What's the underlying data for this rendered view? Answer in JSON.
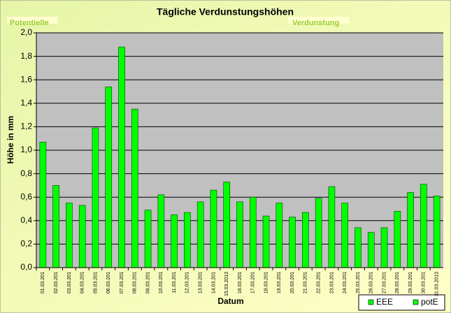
{
  "chart_data": {
    "type": "bar",
    "title": "Tägliche Verdunstungshöhen",
    "annotations": [
      "Potentielle",
      "Verdunstung"
    ],
    "xlabel": "Datum",
    "ylabel": "Höhe in mm",
    "categories": [
      "01.03.201",
      "02.03.201",
      "03.03.201",
      "04.03.201",
      "05.03.201",
      "06.03.201",
      "07.03.201",
      "08.03.201",
      "09.03.201",
      "10.03.201",
      "11.03.201",
      "12.03.201",
      "13.03.201",
      "14.03.201",
      "15.03.2013",
      "16.03.201",
      "17.03.201",
      "18.03.201",
      "19.03.201",
      "20.03.201",
      "21.03.201",
      "22.03.201",
      "23.03.201",
      "24.03.201",
      "25.03.201",
      "26.03.201",
      "27.03.201",
      "28.03.201",
      "29.03.201",
      "30.03.201",
      "31.03.2013"
    ],
    "series": [
      {
        "name": "potE",
        "color": "#00ff00",
        "values": [
          1.07,
          0.7,
          0.55,
          0.53,
          1.19,
          1.54,
          1.88,
          1.35,
          0.49,
          0.62,
          0.45,
          0.47,
          0.56,
          0.66,
          0.73,
          0.56,
          0.6,
          0.44,
          0.55,
          0.43,
          0.47,
          0.59,
          0.69,
          0.55,
          0.34,
          0.3,
          0.34,
          0.48,
          0.64,
          0.71,
          0.61
        ]
      }
    ],
    "legend_entries": [
      {
        "name": "EEE",
        "color": "#00ff00"
      },
      {
        "name": "potE",
        "color": "#00ff00"
      }
    ],
    "ylim": [
      0,
      2
    ],
    "yticks": [
      {
        "value": 0,
        "label": "0,0"
      },
      {
        "value": 0.2,
        "label": "0,2"
      },
      {
        "value": 0.4,
        "label": "0,4"
      },
      {
        "value": 0.6,
        "label": "0,6"
      },
      {
        "value": 0.8,
        "label": "0,8"
      },
      {
        "value": 1,
        "label": "1,0"
      },
      {
        "value": 1.2,
        "label": "1,2"
      },
      {
        "value": 1.4,
        "label": "1,4"
      },
      {
        "value": 1.6,
        "label": "1,6"
      },
      {
        "value": 1.8,
        "label": "1,8"
      },
      {
        "value": 2,
        "label": "2,0"
      }
    ],
    "grid": true
  }
}
